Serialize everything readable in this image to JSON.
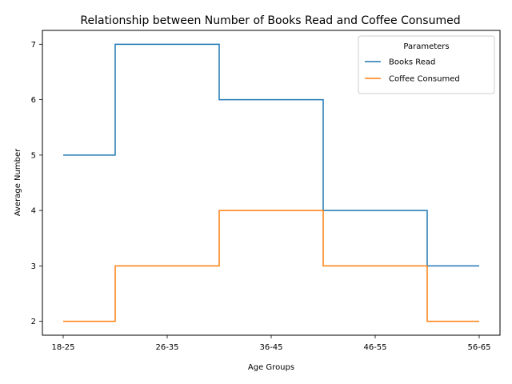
{
  "chart_data": {
    "type": "line",
    "step": "mid",
    "title": "Relationship between Number of Books Read and Coffee Consumed",
    "xlabel": "Age Groups",
    "ylabel": "Average Number",
    "categories": [
      "18-25",
      "26-35",
      "36-45",
      "46-55",
      "56-65"
    ],
    "yticks": [
      2,
      3,
      4,
      5,
      6,
      7
    ],
    "ylim": [
      1.75,
      7.25
    ],
    "grid": false,
    "legend": {
      "title": "Parameters",
      "placement": "top-right"
    },
    "series": [
      {
        "name": "Books Read",
        "values": [
          5,
          7,
          6,
          4,
          3
        ],
        "color": "#1f77b4"
      },
      {
        "name": "Coffee Consumed",
        "values": [
          2,
          3,
          4,
          3,
          2
        ],
        "color": "#ff7f0e"
      }
    ]
  }
}
